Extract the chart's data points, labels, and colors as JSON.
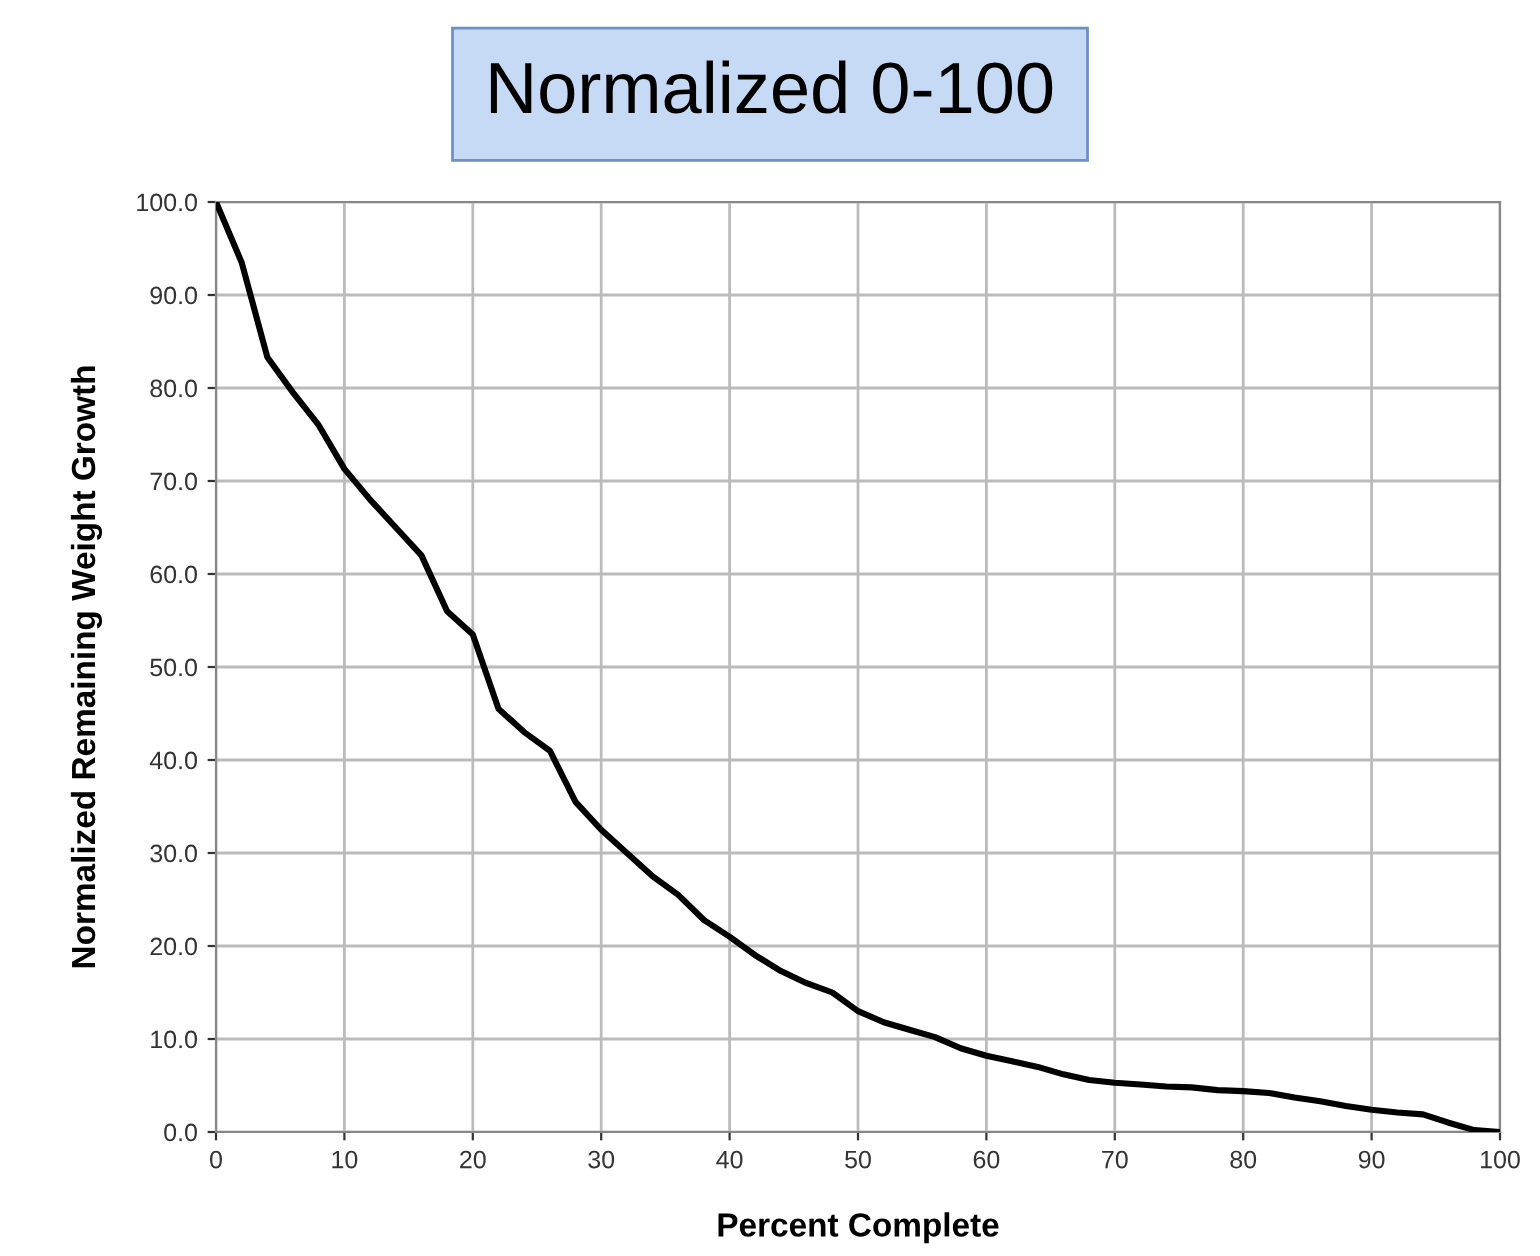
{
  "chart_data": {
    "type": "line",
    "title": "Normalized 0-100",
    "xlabel": "Percent Complete",
    "ylabel": "Normalized Remaining Weight Growth",
    "x": [
      0,
      2,
      4,
      6,
      8,
      10,
      12,
      14,
      16,
      18,
      20,
      22,
      24,
      26,
      28,
      30,
      32,
      34,
      36,
      38,
      40,
      42,
      44,
      46,
      48,
      50,
      52,
      54,
      56,
      58,
      60,
      62,
      64,
      66,
      68,
      70,
      72,
      74,
      76,
      78,
      80,
      82,
      84,
      86,
      88,
      90,
      92,
      94,
      96,
      98,
      100
    ],
    "series": [
      {
        "color": "#000000",
        "values": [
          100,
          93.5,
          83.3,
          79.5,
          76,
          71.3,
          68,
          65,
          62,
          56,
          53.5,
          45.5,
          43,
          41,
          35.5,
          32.5,
          30,
          27.5,
          25.5,
          22.8,
          21,
          19,
          17.3,
          16,
          15,
          13,
          11.8,
          11,
          10.2,
          9,
          8.2,
          7.6,
          7,
          6.2,
          5.6,
          5.3,
          5.1,
          4.9,
          4.8,
          4.5,
          4.4,
          4.2,
          3.7,
          3.3,
          2.8,
          2.4,
          2.1,
          1.9,
          1,
          0.2,
          0
        ]
      }
    ],
    "xlim": [
      0,
      100
    ],
    "ylim": [
      0,
      100
    ],
    "xticks": [
      0,
      10,
      20,
      30,
      40,
      50,
      60,
      70,
      80,
      90,
      100
    ],
    "yticks": [
      {
        "value": 0,
        "label": "0.0"
      },
      {
        "value": 10,
        "label": "10.0"
      },
      {
        "value": 20,
        "label": "20.0"
      },
      {
        "value": 30,
        "label": "30.0"
      },
      {
        "value": 40,
        "label": "40.0"
      },
      {
        "value": 50,
        "label": "50.0"
      },
      {
        "value": 60,
        "label": "60.0"
      },
      {
        "value": 70,
        "label": "70.0"
      },
      {
        "value": 80,
        "label": "80.0"
      },
      {
        "value": 90,
        "label": "90.0"
      },
      {
        "value": 100,
        "label": "100.0"
      }
    ],
    "grid": true,
    "marker": "none",
    "line_style": "solid",
    "legend": false
  }
}
